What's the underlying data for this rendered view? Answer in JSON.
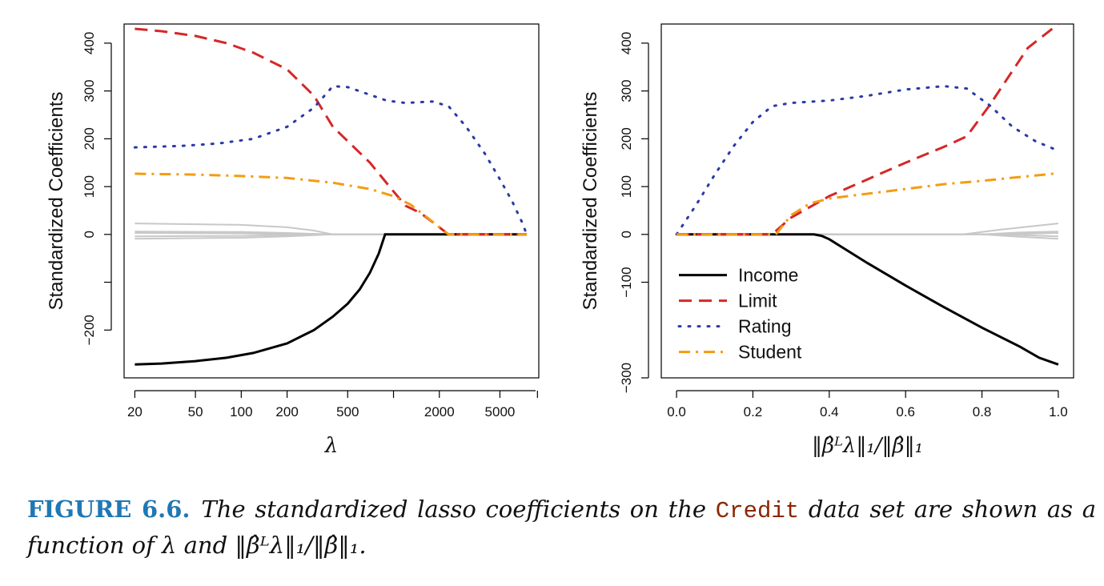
{
  "chart_data": [
    {
      "type": "line",
      "xlabel": "λ",
      "ylabel": "Standardized Coefficients",
      "xscale": "log",
      "xlim": [
        17,
        9000
      ],
      "ylim": [
        -300,
        440
      ],
      "x_ticks": [
        20,
        50,
        100,
        200,
        500,
        2000,
        5000
      ],
      "x_tick_labels": [
        "20",
        "50",
        "100",
        "200",
        "500",
        "2000",
        "5000"
      ],
      "y_ticks": [
        -200,
        -100,
        0,
        100,
        200,
        300,
        400
      ],
      "y_tick_labels": [
        "−200",
        "",
        "0",
        "100",
        "200",
        "300",
        "400"
      ],
      "series": [
        {
          "name": "Income",
          "color": "#000000",
          "style": "solid",
          "points": [
            [
              20,
              -272
            ],
            [
              30,
              -270
            ],
            [
              50,
              -265
            ],
            [
              80,
              -258
            ],
            [
              120,
              -248
            ],
            [
              200,
              -228
            ],
            [
              300,
              -200
            ],
            [
              400,
              -172
            ],
            [
              500,
              -145
            ],
            [
              600,
              -115
            ],
            [
              700,
              -80
            ],
            [
              800,
              -40
            ],
            [
              880,
              0
            ],
            [
              1000,
              0
            ],
            [
              7500,
              0
            ]
          ]
        },
        {
          "name": "Limit",
          "color": "#d62728",
          "style": "dashed",
          "points": [
            [
              20,
              430
            ],
            [
              30,
              425
            ],
            [
              50,
              415
            ],
            [
              80,
              400
            ],
            [
              120,
              380
            ],
            [
              200,
              345
            ],
            [
              300,
              290
            ],
            [
              400,
              225
            ],
            [
              500,
              195
            ],
            [
              700,
              150
            ],
            [
              1000,
              90
            ],
            [
              1200,
              60
            ],
            [
              1500,
              45
            ],
            [
              2000,
              15
            ],
            [
              2300,
              0
            ],
            [
              7500,
              0
            ]
          ]
        },
        {
          "name": "Rating",
          "color": "#2a3aa6",
          "style": "dotted",
          "points": [
            [
              20,
              182
            ],
            [
              40,
              185
            ],
            [
              70,
              190
            ],
            [
              120,
              200
            ],
            [
              200,
              225
            ],
            [
              300,
              265
            ],
            [
              400,
              310
            ],
            [
              500,
              308
            ],
            [
              700,
              292
            ],
            [
              900,
              280
            ],
            [
              1200,
              275
            ],
            [
              1800,
              278
            ],
            [
              2300,
              268
            ],
            [
              3000,
              225
            ],
            [
              4000,
              168
            ],
            [
              5000,
              115
            ],
            [
              6000,
              70
            ],
            [
              7000,
              25
            ],
            [
              7500,
              0
            ]
          ]
        },
        {
          "name": "Student",
          "color": "#f39c12",
          "style": "dashdot",
          "points": [
            [
              20,
              127
            ],
            [
              50,
              125
            ],
            [
              100,
              122
            ],
            [
              200,
              118
            ],
            [
              400,
              108
            ],
            [
              700,
              95
            ],
            [
              1000,
              80
            ],
            [
              1300,
              62
            ],
            [
              1600,
              40
            ],
            [
              2000,
              15
            ],
            [
              2300,
              0
            ],
            [
              7500,
              0
            ]
          ]
        },
        {
          "name": "",
          "color": "#c8c8c8",
          "style": "solid",
          "points": [
            [
              20,
              23
            ],
            [
              100,
              20
            ],
            [
              200,
              15
            ],
            [
              300,
              8
            ],
            [
              400,
              0
            ],
            [
              7500,
              0
            ]
          ]
        },
        {
          "name": "",
          "color": "#c8c8c8",
          "style": "solid",
          "points": [
            [
              20,
              6
            ],
            [
              100,
              5
            ],
            [
              200,
              3
            ],
            [
              400,
              0
            ],
            [
              7500,
              0
            ]
          ]
        },
        {
          "name": "",
          "color": "#c8c8c8",
          "style": "solid",
          "points": [
            [
              20,
              3
            ],
            [
              100,
              2
            ],
            [
              300,
              0
            ],
            [
              7500,
              0
            ]
          ]
        },
        {
          "name": "",
          "color": "#c8c8c8",
          "style": "solid",
          "points": [
            [
              20,
              -4
            ],
            [
              100,
              -3
            ],
            [
              300,
              0
            ],
            [
              7500,
              0
            ]
          ]
        },
        {
          "name": "",
          "color": "#c8c8c8",
          "style": "solid",
          "points": [
            [
              20,
              -9
            ],
            [
              100,
              -7
            ],
            [
              200,
              -4
            ],
            [
              400,
              0
            ],
            [
              7500,
              0
            ]
          ]
        }
      ]
    },
    {
      "type": "line",
      "xlabel": "‖β̂ᴸλ‖₁/‖β̂‖₁",
      "ylabel": "Standardized Coefficients",
      "xscale": "linear",
      "xlim": [
        -0.04,
        1.04
      ],
      "ylim": [
        -300,
        440
      ],
      "x_ticks": [
        0.0,
        0.2,
        0.4,
        0.6,
        0.8,
        1.0
      ],
      "x_tick_labels": [
        "0.0",
        "0.2",
        "0.4",
        "0.6",
        "0.8",
        "1.0"
      ],
      "y_ticks": [
        -300,
        -100,
        0,
        100,
        200,
        300,
        400
      ],
      "y_tick_labels": [
        "−300",
        "−100",
        "0",
        "100",
        "200",
        "300",
        "400"
      ],
      "legend": {
        "position": "bottom-left",
        "entries": [
          "Income",
          "Limit",
          "Rating",
          "Student"
        ]
      },
      "series": [
        {
          "name": "Income",
          "color": "#000000",
          "style": "solid",
          "points": [
            [
              0,
              0
            ],
            [
              0.36,
              0
            ],
            [
              0.38,
              -3
            ],
            [
              0.4,
              -10
            ],
            [
              0.5,
              -60
            ],
            [
              0.6,
              -107
            ],
            [
              0.7,
              -152
            ],
            [
              0.8,
              -195
            ],
            [
              0.9,
              -235
            ],
            [
              0.95,
              -258
            ],
            [
              1.0,
              -272
            ]
          ]
        },
        {
          "name": "Limit",
          "color": "#d62728",
          "style": "dashed",
          "points": [
            [
              0,
              0
            ],
            [
              0.25,
              0
            ],
            [
              0.3,
              35
            ],
            [
              0.4,
              80
            ],
            [
              0.5,
              115
            ],
            [
              0.6,
              150
            ],
            [
              0.7,
              183
            ],
            [
              0.76,
              205
            ],
            [
              0.82,
              270
            ],
            [
              0.87,
              330
            ],
            [
              0.92,
              390
            ],
            [
              1.0,
              440
            ]
          ]
        },
        {
          "name": "Rating",
          "color": "#2a3aa6",
          "style": "dotted",
          "points": [
            [
              0,
              0
            ],
            [
              0.05,
              60
            ],
            [
              0.1,
              125
            ],
            [
              0.15,
              185
            ],
            [
              0.2,
              235
            ],
            [
              0.25,
              268
            ],
            [
              0.3,
              275
            ],
            [
              0.4,
              280
            ],
            [
              0.5,
              290
            ],
            [
              0.6,
              303
            ],
            [
              0.7,
              310
            ],
            [
              0.76,
              305
            ],
            [
              0.82,
              270
            ],
            [
              0.88,
              225
            ],
            [
              0.94,
              195
            ],
            [
              1.0,
              175
            ]
          ]
        },
        {
          "name": "Student",
          "color": "#f39c12",
          "style": "dashdot",
          "points": [
            [
              0,
              0
            ],
            [
              0.26,
              0
            ],
            [
              0.3,
              40
            ],
            [
              0.35,
              65
            ],
            [
              0.4,
              75
            ],
            [
              0.5,
              85
            ],
            [
              0.6,
              95
            ],
            [
              0.7,
              105
            ],
            [
              0.8,
              112
            ],
            [
              0.9,
              120
            ],
            [
              1.0,
              128
            ]
          ]
        },
        {
          "name": "",
          "color": "#c8c8c8",
          "style": "solid",
          "points": [
            [
              0,
              0
            ],
            [
              0.75,
              0
            ],
            [
              0.85,
              10
            ],
            [
              1.0,
              23
            ]
          ]
        },
        {
          "name": "",
          "color": "#c8c8c8",
          "style": "solid",
          "points": [
            [
              0,
              0
            ],
            [
              0.8,
              0
            ],
            [
              0.9,
              4
            ],
            [
              1.0,
              6
            ]
          ]
        },
        {
          "name": "",
          "color": "#c8c8c8",
          "style": "solid",
          "points": [
            [
              0,
              0
            ],
            [
              0.85,
              0
            ],
            [
              1.0,
              3
            ]
          ]
        },
        {
          "name": "",
          "color": "#c8c8c8",
          "style": "solid",
          "points": [
            [
              0,
              0
            ],
            [
              0.85,
              0
            ],
            [
              1.0,
              -4
            ]
          ]
        },
        {
          "name": "",
          "color": "#c8c8c8",
          "style": "solid",
          "points": [
            [
              0,
              0
            ],
            [
              0.8,
              0
            ],
            [
              0.9,
              -5
            ],
            [
              1.0,
              -9
            ]
          ]
        }
      ]
    }
  ],
  "caption": {
    "label": "FIGURE 6.6.",
    "text_before": "The standardized lasso coefficients on the",
    "code_word": "Credit",
    "text_after": "data set are shown as a function of λ and ‖β̂ᴸλ‖₁/‖β̂‖₁."
  }
}
